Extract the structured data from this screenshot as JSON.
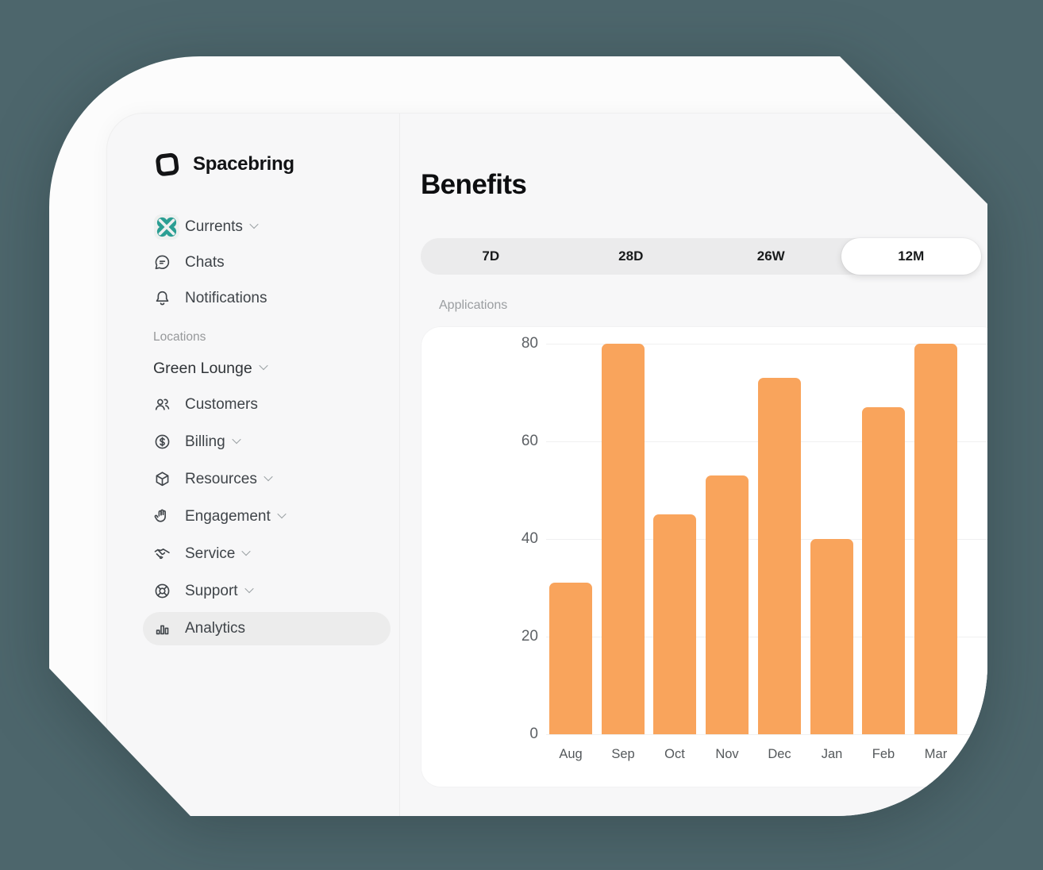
{
  "colors": {
    "background_slate": "#4d666c",
    "page_surface": "#fcfcfc",
    "app_surface": "#f7f7f8",
    "accent_teal": "#2b9e93",
    "bar_orange": "#f9a45c",
    "active_pill": "#ececec",
    "segmented_track": "#ebebec"
  },
  "sidebar": {
    "brand": "Spacebring",
    "nav": [
      {
        "label": "Currents",
        "icon": "currents-icon",
        "chevron": true
      },
      {
        "label": "Chats",
        "icon": "chats-icon",
        "chevron": false
      },
      {
        "label": "Notifications",
        "icon": "notifications-icon",
        "chevron": false
      }
    ],
    "section_label": "Locations",
    "location_switcher": {
      "label": "Green Lounge",
      "chevron": true
    },
    "items": [
      {
        "label": "Customers",
        "icon": "customers-icon",
        "chevron": false,
        "active": false
      },
      {
        "label": "Billing",
        "icon": "billing-icon",
        "chevron": true,
        "active": false
      },
      {
        "label": "Resources",
        "icon": "resources-icon",
        "chevron": true,
        "active": false
      },
      {
        "label": "Engagement",
        "icon": "engagement-icon",
        "chevron": true,
        "active": false
      },
      {
        "label": "Service",
        "icon": "service-icon",
        "chevron": true,
        "active": false
      },
      {
        "label": "Support",
        "icon": "support-icon",
        "chevron": true,
        "active": false
      },
      {
        "label": "Analytics",
        "icon": "analytics-icon",
        "chevron": false,
        "active": true
      }
    ]
  },
  "main": {
    "title": "Benefits",
    "range_tabs": [
      {
        "label": "7D",
        "selected": false
      },
      {
        "label": "28D",
        "selected": false
      },
      {
        "label": "26W",
        "selected": false
      },
      {
        "label": "12M",
        "selected": true
      }
    ],
    "chart_label": "Applications"
  },
  "chart_data": {
    "type": "bar",
    "title": "Applications",
    "categories": [
      "Aug",
      "Sep",
      "Oct",
      "Nov",
      "Dec",
      "Jan",
      "Feb",
      "Mar"
    ],
    "values": [
      31,
      80,
      45,
      53,
      73,
      40,
      67,
      80
    ],
    "yticks": [
      0,
      20,
      40,
      60,
      80
    ],
    "ylim": [
      0,
      80
    ],
    "xlabel": "",
    "ylabel": "",
    "grid": true,
    "legend": false,
    "bar_color": "#f9a45c"
  }
}
